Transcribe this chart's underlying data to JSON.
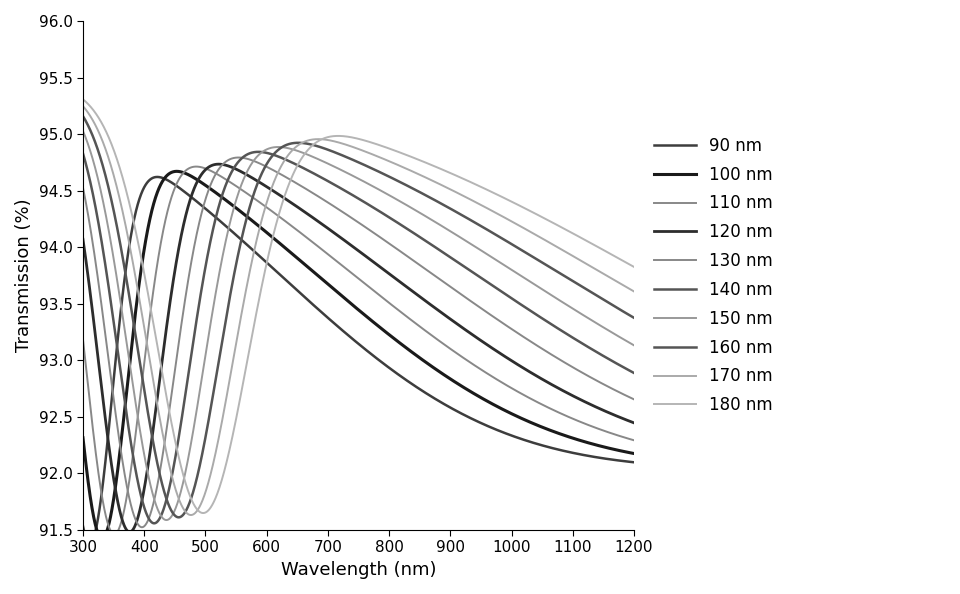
{
  "thicknesses": [
    90,
    100,
    110,
    120,
    130,
    140,
    150,
    160,
    170,
    180
  ],
  "colors": {
    "90": "#3d3d3d",
    "100": "#1a1a1a",
    "110": "#888888",
    "120": "#2d2d2d",
    "130": "#888888",
    "140": "#555555",
    "150": "#999999",
    "160": "#555555",
    "170": "#aaaaaa",
    "180": "#b5b5b5"
  },
  "linewidths": {
    "90": 1.8,
    "100": 2.2,
    "110": 1.4,
    "120": 2.0,
    "130": 1.4,
    "140": 1.8,
    "150": 1.4,
    "160": 1.8,
    "170": 1.4,
    "180": 1.4
  },
  "xlabel": "Wavelength (nm)",
  "ylabel": "Transmission (%)",
  "xlim": [
    300,
    1200
  ],
  "ylim": [
    91.5,
    96
  ],
  "yticks": [
    91.5,
    92,
    92.5,
    93,
    93.5,
    94,
    94.5,
    95,
    95.5,
    96
  ],
  "xticks": [
    300,
    400,
    500,
    600,
    700,
    800,
    900,
    1000,
    1100,
    1200
  ],
  "T_max": 95.5,
  "T_min": 91.85,
  "dip_centers": [
    310,
    330,
    350,
    375,
    395,
    415,
    435,
    455,
    475,
    495
  ],
  "dip_sigmas": [
    38,
    42,
    46,
    50,
    54,
    58,
    62,
    66,
    70,
    74
  ],
  "roll_centers": [
    620,
    680,
    740,
    800,
    870,
    940,
    1010,
    1080,
    1150,
    1220
  ],
  "roll_sigmas": [
    280,
    300,
    320,
    340,
    360,
    380,
    400,
    420,
    440,
    460
  ]
}
